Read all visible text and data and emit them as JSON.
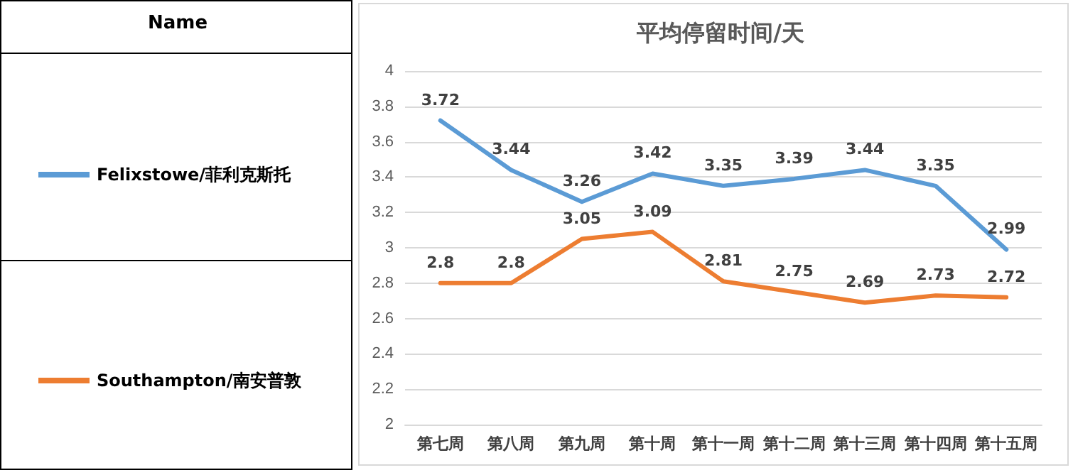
{
  "chart_data": {
    "type": "line",
    "title": "平均停留时间/天",
    "legend_title": "Name",
    "categories": [
      "第七周",
      "第八周",
      "第九周",
      "第十周",
      "第十一周",
      "第十二周",
      "第十三周",
      "第十四周",
      "第十五周"
    ],
    "series": [
      {
        "name": "Felixstowe/菲利克斯托",
        "color": "#5b9bd5",
        "values": [
          3.72,
          3.44,
          3.26,
          3.42,
          3.35,
          3.39,
          3.44,
          3.35,
          2.99
        ]
      },
      {
        "name": "Southampton/南安普敦",
        "color": "#ed7d31",
        "values": [
          2.8,
          2.8,
          3.05,
          3.09,
          2.81,
          2.75,
          2.69,
          2.73,
          2.72
        ]
      }
    ],
    "ylim": [
      2,
      4
    ],
    "yticks": [
      2,
      2.2,
      2.4,
      2.6,
      2.8,
      3,
      3.2,
      3.4,
      3.6,
      3.8,
      4
    ],
    "grid": "y",
    "legend": "left",
    "data_labels": true,
    "marker": "none",
    "line_style": "solid"
  }
}
